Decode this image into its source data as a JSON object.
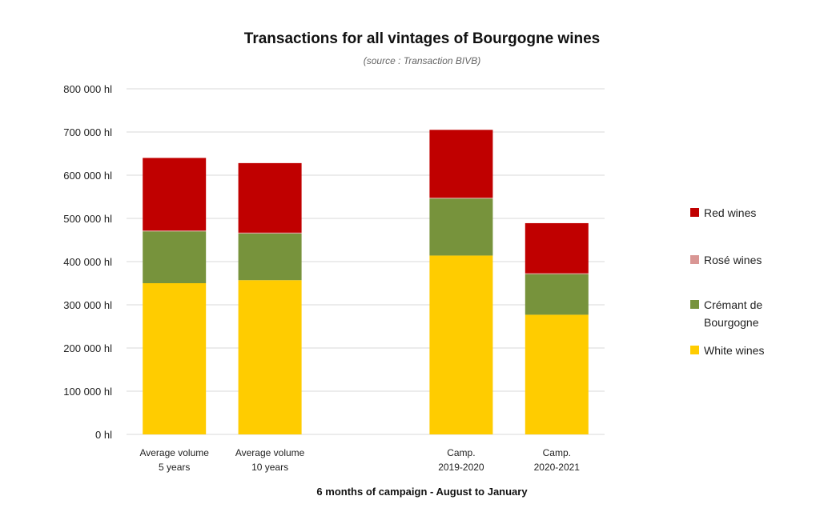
{
  "chart_data": {
    "type": "bar",
    "stacked": true,
    "title": "Transactions  for all vintages of Bourgogne  wines",
    "subtitle": "(source : Transaction BIVB)",
    "xlabel": "6 months of campaign - August to January",
    "ylabel": "",
    "ylim": [
      0,
      800000
    ],
    "yticks": [
      0,
      100000,
      200000,
      300000,
      400000,
      500000,
      600000,
      700000,
      800000
    ],
    "ytick_labels": [
      "0 hl",
      "100 000 hl",
      "200 000 hl",
      "300 000 hl",
      "400 000 hl",
      "500 000 hl",
      "600 000 hl",
      "700 000 hl",
      "800 000 hl"
    ],
    "categories": [
      [
        "Average volume",
        "5 years"
      ],
      [
        "Average volume",
        "10 years"
      ],
      [
        "",
        ""
      ],
      [
        "Camp.",
        "2019-2020"
      ],
      [
        "Camp.",
        "2020-2021"
      ]
    ],
    "series": [
      {
        "name": "White wines",
        "color": "#FFCC00",
        "values": [
          350000,
          357000,
          null,
          414000,
          277000
        ]
      },
      {
        "name": "Crémant de Bourgogne",
        "color": "#77933C",
        "values": [
          120000,
          108000,
          null,
          132000,
          94000
        ]
      },
      {
        "name": "Rosé wines",
        "color": "#D99694",
        "values": [
          2000,
          2000,
          null,
          2000,
          2000
        ]
      },
      {
        "name": "Red wines",
        "color": "#C00000",
        "values": [
          168000,
          161000,
          null,
          157000,
          116000
        ]
      }
    ],
    "legend": {
      "placement": "right",
      "order": [
        {
          "label": "Red wines",
          "color": "#C00000"
        },
        {
          "label": "Rosé wines",
          "color": "#D99694"
        },
        {
          "label": [
            "Crémant de",
            "Bourgogne"
          ],
          "color": "#77933C"
        },
        {
          "label": "White wines",
          "color": "#FFCC00"
        }
      ]
    },
    "grid": true
  }
}
